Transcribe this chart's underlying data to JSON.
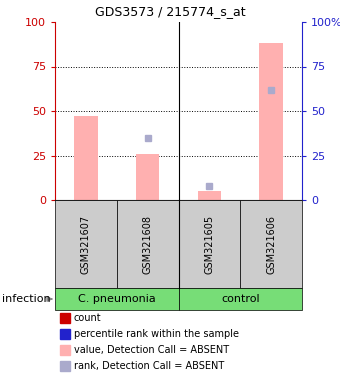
{
  "title": "GDS3573 / 215774_s_at",
  "samples": [
    "GSM321607",
    "GSM321608",
    "GSM321605",
    "GSM321606"
  ],
  "bar_values_pink": [
    47,
    26,
    5,
    88
  ],
  "square_values_blue": [
    null,
    35,
    8,
    62
  ],
  "ylim": [
    0,
    100
  ],
  "yticks_left": [
    0,
    25,
    50,
    75,
    100
  ],
  "yticks_right": [
    0,
    25,
    50,
    75,
    100
  ],
  "yticks_right_labels": [
    "0",
    "25",
    "50",
    "75",
    "100%"
  ],
  "left_axis_color": "#cc0000",
  "right_axis_color": "#2222cc",
  "bar_color_absent": "#ffb0b0",
  "sq_color_absent": "#aaaacc",
  "sample_box_color": "#cccccc",
  "group_defs": [
    {
      "label": "C. pneumonia",
      "span": 2,
      "color": "#77dd77"
    },
    {
      "label": "control",
      "span": 2,
      "color": "#77dd77"
    }
  ],
  "legend_items": [
    {
      "color": "#cc0000",
      "label": "count"
    },
    {
      "color": "#2222cc",
      "label": "percentile rank within the sample"
    },
    {
      "color": "#ffb0b0",
      "label": "value, Detection Call = ABSENT"
    },
    {
      "color": "#aaaacc",
      "label": "rank, Detection Call = ABSENT"
    }
  ],
  "infection_label": "infection"
}
